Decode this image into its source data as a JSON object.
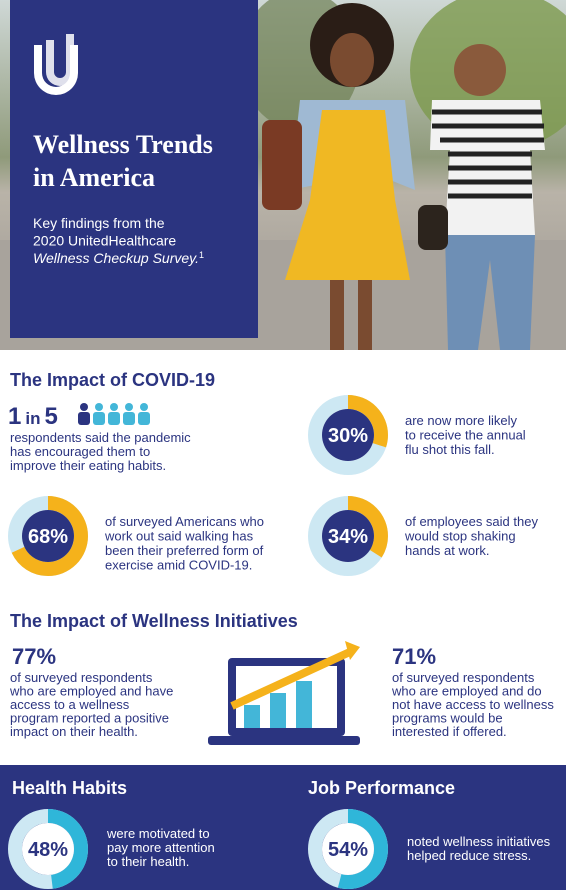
{
  "header": {
    "title_lines": [
      "Wellness Trends",
      "in America"
    ],
    "subtitle_lines": [
      "Key findings from the",
      "2020 UnitedHealthcare"
    ],
    "subtitle_italic": "Wellness Checkup Survey.",
    "footnote_ref": "1"
  },
  "covid": {
    "heading": "The Impact of COVID-19",
    "ratio": {
      "count": 1,
      "joiner": "in",
      "total": 5,
      "lines": [
        "respondents said the pandemic",
        "has encouraged them to",
        "improve their eating habits."
      ]
    },
    "donuts": [
      {
        "value": 30,
        "label": "30%",
        "lines": [
          "are now more likely",
          "to receive the annual",
          "flu shot this fall."
        ]
      },
      {
        "value": 68,
        "label": "68%",
        "lines": [
          "of surveyed Americans who",
          "work out said walking has",
          "been their preferred form of",
          "exercise amid COVID-19."
        ]
      },
      {
        "value": 34,
        "label": "34%",
        "lines": [
          "of employees said they",
          "would stop shaking",
          "hands at work."
        ]
      }
    ]
  },
  "wellness": {
    "heading": "The Impact of Wellness Initiatives",
    "stats": [
      {
        "label": "77%",
        "lines": [
          "of surveyed respondents",
          "who are employed and have",
          "access to a wellness",
          "program reported a positive",
          "impact on their health."
        ]
      },
      {
        "label": "71%",
        "lines": [
          "of surveyed respondents",
          "who are employed and do",
          "not have access to wellness",
          "programs would be",
          "interested if offered."
        ]
      }
    ]
  },
  "habits": [
    {
      "heading": "Health Habits",
      "value": 48,
      "label": "48%",
      "lines": [
        "were motivated to",
        "pay more attention",
        "to their health."
      ]
    },
    {
      "heading": "Job Performance",
      "value": 54,
      "label": "54%",
      "lines": [
        "noted wellness initiatives",
        "helped reduce stress."
      ]
    }
  ]
}
